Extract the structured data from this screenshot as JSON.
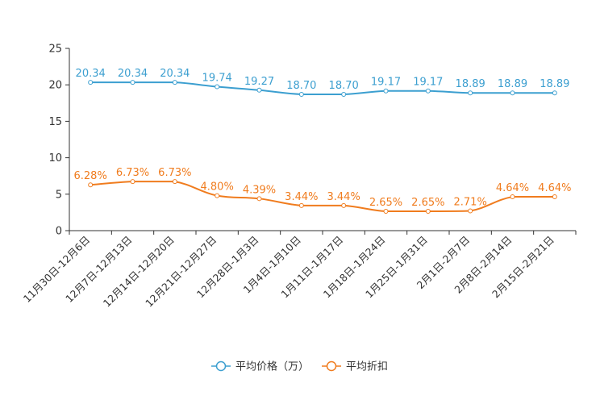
{
  "chart_data": {
    "type": "line",
    "title": "",
    "xlabel": "",
    "ylabel": "",
    "ylim": [
      0,
      25
    ],
    "yticks": [
      0,
      5,
      10,
      15,
      20,
      25
    ],
    "categories": [
      "11月30日-12月6日",
      "12月7日-12月13日",
      "12月14日-12月20日",
      "12月21日-12月27日",
      "12月28日-1月3日",
      "1月4日-1月10日",
      "1月11日-1月17日",
      "1月18日-1月24日",
      "1月25日-1月31日",
      "2月1日-2月7日",
      "2月8日-2月14日",
      "2月15日-2月21日"
    ],
    "series": [
      {
        "name": "平均价格（万）",
        "color": "#3c9fd0",
        "values": [
          20.34,
          20.34,
          20.34,
          19.74,
          19.27,
          18.7,
          18.7,
          19.17,
          19.17,
          18.89,
          18.89,
          18.89
        ],
        "labels": [
          "20.34",
          "20.34",
          "20.34",
          "19.74",
          "19.27",
          "18.70",
          "18.70",
          "19.17",
          "19.17",
          "18.89",
          "18.89",
          "18.89"
        ]
      },
      {
        "name": "平均折扣",
        "color": "#f07c1e",
        "values": [
          6.28,
          6.73,
          6.73,
          4.8,
          4.39,
          3.44,
          3.44,
          2.65,
          2.65,
          2.71,
          4.64,
          4.64
        ],
        "labels": [
          "6.28%",
          "6.73%",
          "6.73%",
          "4.80%",
          "4.39%",
          "3.44%",
          "3.44%",
          "2.65%",
          "2.65%",
          "2.71%",
          "4.64%",
          "4.64%"
        ]
      }
    ],
    "legend_position": "bottom-center",
    "grid": false
  }
}
